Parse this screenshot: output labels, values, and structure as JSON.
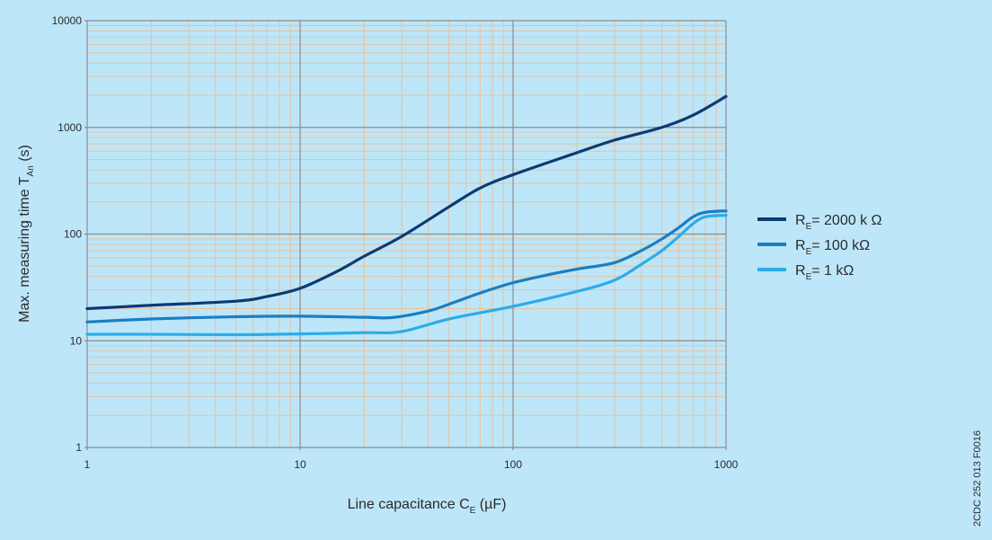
{
  "chart_data": {
    "type": "line",
    "x_scale": "log",
    "y_scale": "log",
    "xlim": [
      1,
      1000
    ],
    "ylim": [
      1,
      10000
    ],
    "grid": true,
    "legend_position": "right",
    "x_ticks": [
      "1",
      "10",
      "100",
      "1000"
    ],
    "y_ticks": [
      "1",
      "10",
      "100",
      "1000",
      "10000"
    ],
    "xlabel": {
      "main": "Line  capacitance C",
      "sub": "E",
      "tail": " (µF)"
    },
    "ylabel": {
      "main": "Max. measuring time T",
      "sub": "An",
      "tail": " (s)"
    },
    "series": [
      {
        "legend": {
          "main": "R",
          "sub": "E",
          "tail": "= 2000 k Ω"
        },
        "color": "#0b3b74",
        "points": [
          [
            1,
            20
          ],
          [
            2,
            21.5
          ],
          [
            5,
            23.5
          ],
          [
            7,
            26
          ],
          [
            10,
            31
          ],
          [
            15,
            45
          ],
          [
            20,
            62
          ],
          [
            30,
            95
          ],
          [
            50,
            180
          ],
          [
            70,
            270
          ],
          [
            100,
            360
          ],
          [
            200,
            580
          ],
          [
            300,
            760
          ],
          [
            500,
            1000
          ],
          [
            700,
            1300
          ],
          [
            1000,
            1950
          ]
        ]
      },
      {
        "legend": {
          "main": "R",
          "sub": "E",
          "tail": "= 100 kΩ"
        },
        "color": "#1b7ec2",
        "points": [
          [
            1,
            15
          ],
          [
            2,
            16
          ],
          [
            5,
            16.8
          ],
          [
            10,
            17
          ],
          [
            20,
            16.6
          ],
          [
            27,
            16.5
          ],
          [
            40,
            19
          ],
          [
            50,
            22
          ],
          [
            70,
            28
          ],
          [
            100,
            35
          ],
          [
            150,
            42
          ],
          [
            200,
            47
          ],
          [
            300,
            54
          ],
          [
            400,
            70
          ],
          [
            500,
            90
          ],
          [
            600,
            115
          ],
          [
            700,
            145
          ],
          [
            800,
            160
          ],
          [
            1000,
            165
          ]
        ]
      },
      {
        "legend": {
          "main": "R",
          "sub": "E",
          "tail": "= 1 kΩ"
        },
        "color": "#2cacea",
        "points": [
          [
            1,
            11.5
          ],
          [
            2,
            11.5
          ],
          [
            5,
            11.4
          ],
          [
            10,
            11.6
          ],
          [
            20,
            11.9
          ],
          [
            30,
            12.2
          ],
          [
            50,
            16
          ],
          [
            100,
            21
          ],
          [
            200,
            29
          ],
          [
            300,
            37
          ],
          [
            400,
            52
          ],
          [
            500,
            70
          ],
          [
            600,
            95
          ],
          [
            700,
            125
          ],
          [
            800,
            145
          ],
          [
            1000,
            150
          ]
        ]
      }
    ]
  },
  "side_code": "2CDC 252 013 F0016"
}
